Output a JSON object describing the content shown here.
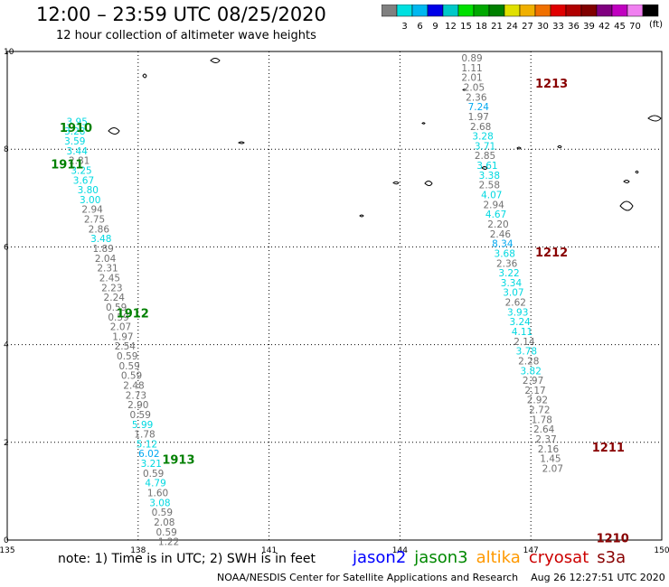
{
  "title": "12:00 – 23:59 UTC 08/25/2020",
  "subtitle": "12 hour collection of altimeter wave heights",
  "note": "note:  1) Time is in UTC; 2) SWH is in feet",
  "footer": "NOAA/NESDIS Center for Satellite Applications and Research    Aug 26 12:27:51 UTC 2020",
  "legend": {
    "unit": "(ft)",
    "levels": [
      "3",
      "6",
      "9",
      "12",
      "15",
      "18",
      "21",
      "24",
      "27",
      "30",
      "33",
      "36",
      "39",
      "42",
      "45",
      "70"
    ],
    "colors": [
      "#808080",
      "#00e0e0",
      "#00b8f0",
      "#0000e8",
      "#00c8c8",
      "#00e000",
      "#00a800",
      "#008000",
      "#e0e000",
      "#f0b000",
      "#f07000",
      "#e00000",
      "#b00000",
      "#800000",
      "#800080",
      "#c000c0",
      "#f080f0",
      "#000000"
    ]
  },
  "sensors": [
    {
      "name": "jason2",
      "color": "#0000ff"
    },
    {
      "name": "jason3",
      "color": "#008800"
    },
    {
      "name": "altika",
      "color": "#ff9900"
    },
    {
      "name": "cryosat",
      "color": "#cc0000"
    },
    {
      "name": "s3a",
      "color": "#880000"
    }
  ],
  "chart_data": {
    "type": "scatter",
    "xlim": [
      135,
      150
    ],
    "ylim": [
      0,
      10
    ],
    "x_ticks": [
      "135",
      "138",
      "141",
      "144",
      "147",
      "150"
    ],
    "y_ticks": [
      "0",
      "2",
      "4",
      "6",
      "8",
      "10"
    ],
    "grid": true,
    "track_labels": [
      {
        "text": "1910",
        "x": 136.2,
        "y": 8.45,
        "color": "#008000"
      },
      {
        "text": "1911",
        "x": 136.0,
        "y": 7.7,
        "color": "#008000"
      },
      {
        "text": "1912",
        "x": 137.5,
        "y": 4.65,
        "color": "#008000"
      },
      {
        "text": "1913",
        "x": 138.55,
        "y": 1.65,
        "color": "#008000"
      },
      {
        "text": "1213",
        "x": 147.1,
        "y": 9.35,
        "color": "#880000"
      },
      {
        "text": "1212",
        "x": 147.1,
        "y": 5.9,
        "color": "#880000"
      },
      {
        "text": "1211",
        "x": 148.4,
        "y": 1.9,
        "color": "#880000"
      },
      {
        "text": "1210",
        "x": 148.5,
        "y": 0.05,
        "color": "#880000"
      }
    ],
    "series": [
      {
        "color": "#404040",
        "points": [
          {
            "x": 136.6,
            "y": 8.57,
            "v": "3.95"
          },
          {
            "x": 136.55,
            "y": 8.37,
            "v": "3.28"
          },
          {
            "x": 136.55,
            "y": 8.17,
            "v": "3.59"
          },
          {
            "x": 136.6,
            "y": 7.97,
            "v": "3.44"
          },
          {
            "x": 136.65,
            "y": 7.77,
            "v": "2.81"
          },
          {
            "x": 136.7,
            "y": 7.57,
            "v": "3.25"
          },
          {
            "x": 136.75,
            "y": 7.37,
            "v": "3.67"
          },
          {
            "x": 136.85,
            "y": 7.17,
            "v": "3.80"
          },
          {
            "x": 136.9,
            "y": 6.97,
            "v": "3.00"
          },
          {
            "x": 136.95,
            "y": 6.77,
            "v": "2.94"
          },
          {
            "x": 137.0,
            "y": 6.57,
            "v": "2.75"
          },
          {
            "x": 137.1,
            "y": 6.37,
            "v": "2.86"
          },
          {
            "x": 137.15,
            "y": 6.17,
            "v": "3.48"
          },
          {
            "x": 137.2,
            "y": 5.97,
            "v": "1.89"
          },
          {
            "x": 137.25,
            "y": 5.77,
            "v": "2.04"
          },
          {
            "x": 137.3,
            "y": 5.57,
            "v": "2.31"
          },
          {
            "x": 137.35,
            "y": 5.37,
            "v": "2.45"
          },
          {
            "x": 137.4,
            "y": 5.17,
            "v": "2.23"
          },
          {
            "x": 137.45,
            "y": 4.97,
            "v": "2.24"
          },
          {
            "x": 137.5,
            "y": 4.77,
            "v": "0.59"
          },
          {
            "x": 137.55,
            "y": 4.57,
            "v": "0.59"
          },
          {
            "x": 137.6,
            "y": 4.37,
            "v": "2.07"
          },
          {
            "x": 137.65,
            "y": 4.17,
            "v": "1.97"
          },
          {
            "x": 137.7,
            "y": 3.97,
            "v": "2.54"
          },
          {
            "x": 137.75,
            "y": 3.77,
            "v": "0.59"
          },
          {
            "x": 137.8,
            "y": 3.57,
            "v": "0.59"
          },
          {
            "x": 137.85,
            "y": 3.37,
            "v": "0.59"
          },
          {
            "x": 137.9,
            "y": 3.17,
            "v": "2.48"
          },
          {
            "x": 137.95,
            "y": 2.97,
            "v": "2.73"
          },
          {
            "x": 138.0,
            "y": 2.77,
            "v": "2.90"
          },
          {
            "x": 138.05,
            "y": 2.57,
            "v": "0.59"
          },
          {
            "x": 138.1,
            "y": 2.37,
            "v": "5.99"
          },
          {
            "x": 138.15,
            "y": 2.17,
            "v": "1.78"
          },
          {
            "x": 138.2,
            "y": 1.97,
            "v": "5.12"
          },
          {
            "x": 138.25,
            "y": 1.77,
            "v": "6.02"
          },
          {
            "x": 138.3,
            "y": 1.57,
            "v": "3.21"
          },
          {
            "x": 138.35,
            "y": 1.37,
            "v": "0.59"
          },
          {
            "x": 138.4,
            "y": 1.17,
            "v": "4.79"
          },
          {
            "x": 138.45,
            "y": 0.97,
            "v": "1.60"
          },
          {
            "x": 138.5,
            "y": 0.77,
            "v": "3.08"
          },
          {
            "x": 138.55,
            "y": 0.57,
            "v": "0.59"
          },
          {
            "x": 138.6,
            "y": 0.37,
            "v": "2.08"
          },
          {
            "x": 138.65,
            "y": 0.17,
            "v": "0.59"
          },
          {
            "x": 138.7,
            "y": -0.03,
            "v": "1.22"
          }
        ]
      },
      {
        "color": "#404040",
        "points": [
          {
            "x": 145.65,
            "y": 9.87,
            "v": "0.89"
          },
          {
            "x": 145.65,
            "y": 9.67,
            "v": "1.11"
          },
          {
            "x": 145.65,
            "y": 9.47,
            "v": "2.01"
          },
          {
            "x": 145.7,
            "y": 9.27,
            "v": "2.05"
          },
          {
            "x": 145.75,
            "y": 9.07,
            "v": "2.36"
          },
          {
            "x": 145.8,
            "y": 8.87,
            "v": "7.24"
          },
          {
            "x": 145.8,
            "y": 8.67,
            "v": "1.97"
          },
          {
            "x": 145.85,
            "y": 8.47,
            "v": "2.68"
          },
          {
            "x": 145.9,
            "y": 8.27,
            "v": "3.28"
          },
          {
            "x": 145.95,
            "y": 8.07,
            "v": "3.71"
          },
          {
            "x": 145.95,
            "y": 7.87,
            "v": "2.85"
          },
          {
            "x": 146.0,
            "y": 7.67,
            "v": "3.61"
          },
          {
            "x": 146.05,
            "y": 7.47,
            "v": "3.38"
          },
          {
            "x": 146.05,
            "y": 7.27,
            "v": "2.58"
          },
          {
            "x": 146.1,
            "y": 7.07,
            "v": "4.07"
          },
          {
            "x": 146.15,
            "y": 6.87,
            "v": "2.94"
          },
          {
            "x": 146.2,
            "y": 6.67,
            "v": "4.67"
          },
          {
            "x": 146.25,
            "y": 6.47,
            "v": "2.20"
          },
          {
            "x": 146.3,
            "y": 6.27,
            "v": "2.46"
          },
          {
            "x": 146.35,
            "y": 6.07,
            "v": "8.34"
          },
          {
            "x": 146.4,
            "y": 5.87,
            "v": "3.68"
          },
          {
            "x": 146.45,
            "y": 5.67,
            "v": "2.36"
          },
          {
            "x": 146.5,
            "y": 5.47,
            "v": "3.22"
          },
          {
            "x": 146.55,
            "y": 5.27,
            "v": "3.34"
          },
          {
            "x": 146.6,
            "y": 5.07,
            "v": "3.07"
          },
          {
            "x": 146.65,
            "y": 4.87,
            "v": "2.62"
          },
          {
            "x": 146.7,
            "y": 4.67,
            "v": "3.93"
          },
          {
            "x": 146.75,
            "y": 4.47,
            "v": "3.24"
          },
          {
            "x": 146.8,
            "y": 4.27,
            "v": "4.11"
          },
          {
            "x": 146.85,
            "y": 4.07,
            "v": "2.14"
          },
          {
            "x": 146.9,
            "y": 3.87,
            "v": "3.78"
          },
          {
            "x": 146.95,
            "y": 3.67,
            "v": "2.28"
          },
          {
            "x": 147.0,
            "y": 3.47,
            "v": "3.82"
          },
          {
            "x": 147.05,
            "y": 3.27,
            "v": "2.97"
          },
          {
            "x": 147.1,
            "y": 3.07,
            "v": "2.17"
          },
          {
            "x": 147.15,
            "y": 2.87,
            "v": "2.92"
          },
          {
            "x": 147.2,
            "y": 2.67,
            "v": "2.72"
          },
          {
            "x": 147.25,
            "y": 2.47,
            "v": "1.78"
          },
          {
            "x": 147.3,
            "y": 2.27,
            "v": "2.64"
          },
          {
            "x": 147.35,
            "y": 2.07,
            "v": "2.37"
          },
          {
            "x": 147.4,
            "y": 1.87,
            "v": "2.16"
          },
          {
            "x": 147.45,
            "y": 1.67,
            "v": "1.45"
          },
          {
            "x": 147.5,
            "y": 1.47,
            "v": "2.07"
          }
        ]
      }
    ]
  }
}
